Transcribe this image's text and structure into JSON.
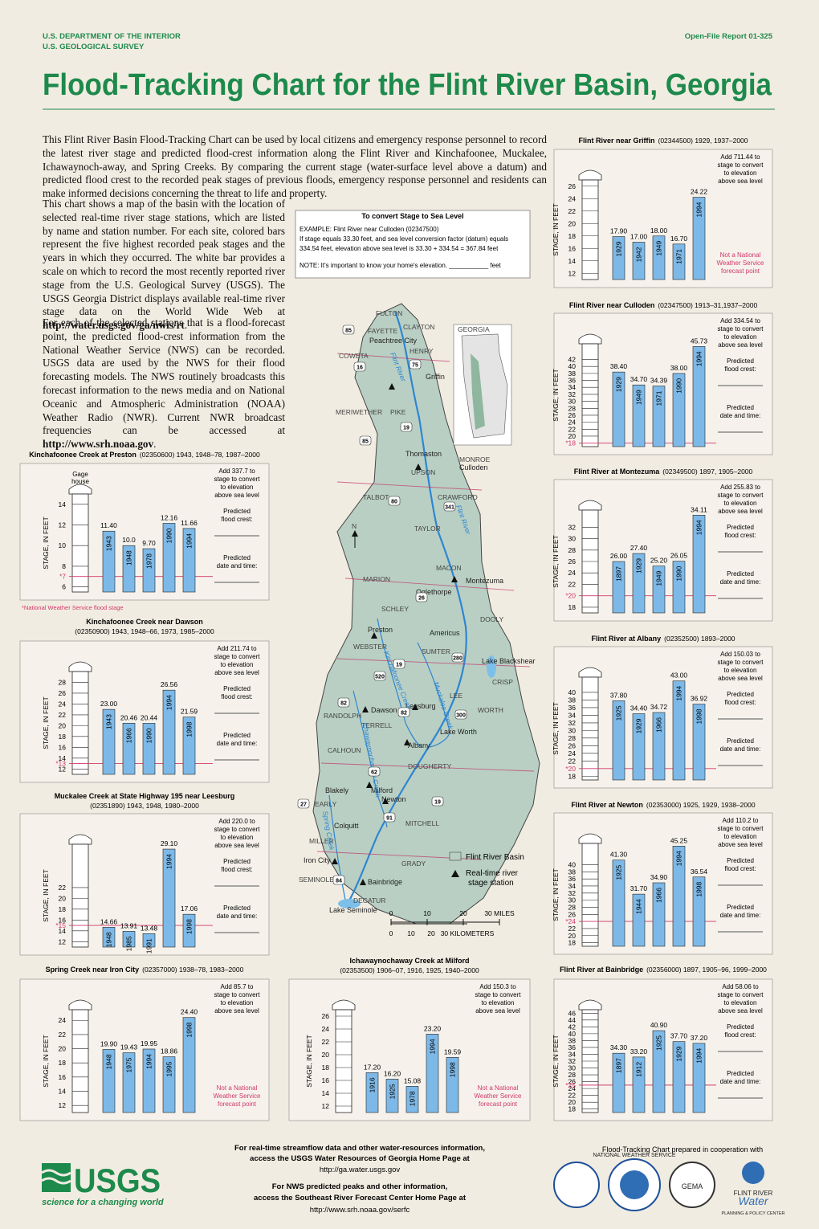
{
  "header": {
    "agency": "U.S. DEPARTMENT OF THE INTERIOR",
    "bureau": "U.S. GEOLOGICAL SURVEY",
    "report": "Open-File Report 01-325",
    "title": "Flood-Tracking Chart for the Flint River Basin, Georgia"
  },
  "intro": {
    "p1": "This Flint River Basin Flood-Tracking Chart can be used by local citizens and emergency response personnel to record the latest river stage and predicted flood-crest information along the Flint River and Kinchafoonee, Muckalee, Ichawaynoch-away, and Spring Creeks. By comparing the current stage (water-surface level above a datum) and predicted flood crest to the recorded peak stages of previous floods, emergency response personnel and residents can make informed decisions concerning the threat to life and property.",
    "p2": [
      "This chart shows a map of the basin with the location of selected real-time river stage stations, which are listed by name and station number. For each site, colored bars represent the five highest recorded peak stages and the years in which they occurred. The white bar provides a scale on which to record the most recently reported river stage from the U.S. Geological Survey (USGS). The USGS Georgia District displays available real-time river stage data on the World Wide Web at ",
      "http://water.usgs.gov/ga/nwis/rt",
      "."
    ],
    "p3": [
      "For each of the selected stations that is a flood-forecast point, the predicted flood-crest information from the National Weather Service (NWS) can be recorded. USGS data are used by the NWS for their flood forecasting models. The NWS routinely broadcasts this forecast information to the news media and on National Oceanic and Atmospheric Administration (NOAA) Weather Radio (NWR). Current NWR broadcast frequencies can be accessed at ",
      "http://www.srh.noaa.gov",
      "."
    ]
  },
  "conversion": {
    "title": "To convert Stage to Sea Level",
    "example": "EXAMPLE: Flint River near Culloden (02347500)",
    "line1": "If stage equals 33.30 feet, and sea level conversion factor (datum) equals",
    "line2": "334.54 feet, elevation above sea level is 33.30 + 334.54 = 367.84 feet",
    "note": "NOTE: It's important to know your home's elevation. ___________ feet"
  },
  "chart_data": [
    {
      "type": "bar",
      "title": "Flint River near Griffin",
      "subtitle": "(02344500) 1929, 1937–2000",
      "ylabel": "STAGE, IN FEET",
      "ylim": [
        11,
        27
      ],
      "yticks": [
        12,
        14,
        16,
        18,
        20,
        22,
        24,
        26
      ],
      "categories": [
        "1929",
        "1942",
        "1949",
        "1971",
        "1994"
      ],
      "values": [
        17.9,
        17,
        18,
        16.7,
        24.22
      ],
      "value_labels": [
        "17.90",
        "17.00",
        "18.00",
        "16.70",
        "24.22"
      ],
      "color": "#7db9e8",
      "datum_note": [
        "Add 711.44 to",
        "stage to convert",
        "to elevation",
        "above sea level"
      ],
      "note": [
        "Not a National",
        "Weather Service",
        "forecast point"
      ]
    },
    {
      "type": "bar",
      "title": "Flint River near Culloden",
      "subtitle": "(02347500) 1913–31,1937–2000",
      "ylabel": "STAGE, IN FEET",
      "ylim": [
        17,
        46.5
      ],
      "yticks": [
        20,
        22,
        24,
        26,
        28,
        30,
        32,
        34,
        36,
        38,
        40,
        42
      ],
      "categories": [
        "1929",
        "1949",
        "1971",
        "1990",
        "1994"
      ],
      "values": [
        38.4,
        34.7,
        34.39,
        38,
        45.73
      ],
      "value_labels": [
        "38.40",
        "34.70",
        "34.39",
        "38.00",
        "45.73"
      ],
      "color": "#7db9e8",
      "datum_note": [
        "Add 334.54 to",
        "stage to convert",
        "to elevation",
        "above sea level"
      ],
      "flood_stage": {
        "value": 18,
        "label": "*18"
      },
      "forecast": [
        [
          "Predicted",
          "flood crest:"
        ],
        [
          "Predicted",
          "date and time:"
        ]
      ]
    },
    {
      "type": "bar",
      "title": "Flint River at Montezuma",
      "subtitle": "(02349500) 1897, 1905–2000",
      "ylabel": "STAGE, IN FEET",
      "ylim": [
        17,
        35
      ],
      "yticks": [
        18,
        22,
        24,
        26,
        28,
        30,
        32
      ],
      "categories": [
        "1897",
        "1929",
        "1949",
        "1990",
        "1994"
      ],
      "values": [
        26,
        27.4,
        25.2,
        26.05,
        34.11
      ],
      "value_labels": [
        "26.00",
        "27.40",
        "25.20",
        "26.05",
        "34.11"
      ],
      "color": "#7db9e8",
      "datum_note": [
        "Add 255.83 to",
        "stage to convert",
        "to elevation",
        "above sea level"
      ],
      "flood_stage": {
        "value": 20,
        "label": "*20"
      },
      "forecast": [
        [
          "Predicted",
          "flood crest:"
        ],
        [
          "Predicted",
          "date and time:"
        ]
      ]
    },
    {
      "type": "bar",
      "title": "Flint River at Albany",
      "subtitle": "(02352500) 1893–2000",
      "ylabel": "STAGE, IN FEET",
      "ylim": [
        17,
        44
      ],
      "yticks": [
        18,
        22,
        24,
        26,
        28,
        30,
        32,
        34,
        36,
        38,
        40
      ],
      "categories": [
        "1925",
        "1929",
        "1966",
        "1994",
        "1998"
      ],
      "values": [
        37.8,
        34.4,
        34.72,
        43,
        36.92
      ],
      "value_labels": [
        "37.80",
        "34.40",
        "34.72",
        "43.00",
        "36.92"
      ],
      "color": "#7db9e8",
      "datum_note": [
        "Add 150.03 to",
        "stage to convert",
        "to elevation",
        "above sea level"
      ],
      "flood_stage": {
        "value": 20,
        "label": "*20"
      },
      "forecast": [
        [
          "Predicted",
          "flood crest:"
        ],
        [
          "Predicted",
          "date and time:"
        ]
      ]
    },
    {
      "type": "bar",
      "title": "Flint River at Newton",
      "subtitle": "(02353000) 1925, 1929, 1938–2000",
      "ylabel": "STAGE, IN FEET",
      "ylim": [
        17,
        46
      ],
      "yticks": [
        18,
        20,
        22,
        26,
        28,
        30,
        32,
        34,
        36,
        38,
        40
      ],
      "categories": [
        "1925",
        "1944",
        "1966",
        "1994",
        "1998"
      ],
      "values": [
        41.3,
        31.7,
        34.9,
        45.25,
        36.54
      ],
      "value_labels": [
        "41.30",
        "31.70",
        "34.90",
        "45.25",
        "36.54"
      ],
      "color": "#7db9e8",
      "datum_note": [
        "Add 110.2 to",
        "stage to convert",
        "to elevation",
        "above sea level"
      ],
      "flood_stage": {
        "value": 24,
        "label": "*24"
      },
      "forecast": [
        [
          "Predicted",
          "flood crest:"
        ],
        [
          "Predicted",
          "date and time:"
        ]
      ]
    },
    {
      "type": "bar",
      "title": "Flint River at Bainbridge",
      "subtitle": "(02356000) 1897, 1905–96, 1999–2000",
      "ylabel": "STAGE, IN FEET",
      "ylim": [
        17,
        47
      ],
      "yticks": [
        18,
        20,
        22,
        24,
        26,
        28,
        30,
        32,
        34,
        36,
        38,
        40,
        42,
        44,
        46
      ],
      "categories": [
        "1897",
        "1912",
        "1925",
        "1929",
        "1994"
      ],
      "values": [
        34.3,
        33.2,
        40.9,
        37.7,
        37.2
      ],
      "value_labels": [
        "34.30",
        "33.20",
        "40.90",
        "37.70",
        "37.20"
      ],
      "color": "#7db9e8",
      "datum_note": [
        "Add 58.06 to",
        "stage to convert",
        "to elevation",
        "above sea level"
      ],
      "flood_stage": {
        "value": 25,
        "label": "*25"
      },
      "forecast": [
        [
          "Predicted",
          "flood crest:"
        ],
        [
          "Predicted",
          "date and time:"
        ]
      ]
    },
    {
      "type": "bar",
      "title": "Kinchafoonee Creek at Preston",
      "subtitle": "(02350600) 1943, 1948–78, 1987–2000",
      "ylabel": "STAGE, IN FEET",
      "ylim": [
        5.5,
        15
      ],
      "yticks": [
        6,
        8,
        10,
        12,
        14
      ],
      "categories": [
        "1943",
        "1948",
        "1978",
        "1990",
        "1994"
      ],
      "values": [
        11.4,
        10,
        9.7,
        12.16,
        11.66
      ],
      "value_labels": [
        "11.40",
        "10.0",
        "9.70",
        "12.16",
        "11.66"
      ],
      "color": "#7db9e8",
      "gage_label": [
        "Gage",
        "house"
      ],
      "datum_note": [
        "Add 337.7 to",
        "stage to convert",
        "to elevation",
        "above sea level"
      ],
      "flood_stage": {
        "value": 7,
        "label": "*7"
      },
      "forecast": [
        [
          "Predicted",
          "flood crest:"
        ],
        [
          "Predicted",
          "date and time:"
        ]
      ],
      "footnote": "*National Weather Service flood stage"
    },
    {
      "type": "bar",
      "title": "Kinchafoonee Creek near Dawson",
      "subtitle": "(02350900) 1943, 1948–66, 1973, 1985–2000",
      "ylabel": "STAGE, IN FEET",
      "ylim": [
        11,
        30
      ],
      "yticks": [
        12,
        14,
        16,
        18,
        20,
        22,
        24,
        26,
        28
      ],
      "categories": [
        "1943",
        "1966",
        "1990",
        "1994",
        "1998"
      ],
      "values": [
        23,
        20.46,
        20.44,
        26.56,
        21.59
      ],
      "value_labels": [
        "23.00",
        "20.46",
        "20.44",
        "26.56",
        "21.59"
      ],
      "color": "#7db9e8",
      "datum_note": [
        "Add 211.74 to",
        "stage to convert",
        "to elevation",
        "above sea level"
      ],
      "flood_stage": {
        "value": 13,
        "label": "*13"
      },
      "forecast": [
        [
          "Predicted",
          "flood crest:"
        ],
        [
          "Predicted",
          "date and time:"
        ]
      ]
    },
    {
      "type": "bar",
      "title": "Muckalee Creek at State Highway 195 near Leesburg",
      "subtitle": "(02351890) 1943, 1948, 1980–2000",
      "ylabel": "STAGE, IN FEET",
      "ylim": [
        11,
        30
      ],
      "yticks": [
        12,
        14,
        16,
        18,
        20,
        22
      ],
      "categories": [
        "1948",
        "1985",
        "1991",
        "1994",
        "1998"
      ],
      "values": [
        14.66,
        13.91,
        13.48,
        29.1,
        17.06
      ],
      "value_labels": [
        "14.66",
        "13.91",
        "13.48",
        "29.10",
        "17.06"
      ],
      "color": "#7db9e8",
      "datum_note": [
        "Add 220.0 to",
        "stage to convert",
        "to elevation",
        "above sea level"
      ],
      "flood_stage": {
        "value": 15,
        "label": "*15"
      },
      "forecast": [
        [
          "Predicted",
          "flood crest:"
        ],
        [
          "Predicted",
          "date and time:"
        ]
      ]
    },
    {
      "type": "bar",
      "title": "Spring Creek near Iron City",
      "subtitle": "(02357000) 1938–78, 1983–2000",
      "ylabel": "STAGE, IN FEET",
      "ylim": [
        11,
        25.5
      ],
      "yticks": [
        12,
        14,
        16,
        18,
        20,
        22,
        24
      ],
      "categories": [
        "1948",
        "1975",
        "1994",
        "1995",
        "1998"
      ],
      "values": [
        19.9,
        19.43,
        19.95,
        18.86,
        24.4
      ],
      "value_labels": [
        "19.90",
        "19.43",
        "19.95",
        "18.86",
        "24.40"
      ],
      "color": "#7db9e8",
      "datum_note": [
        "Add 85.7 to",
        "stage to convert",
        "to elevation",
        "above sea level"
      ],
      "note": [
        "Not a National",
        "Weather Service",
        "forecast point"
      ]
    },
    {
      "type": "bar",
      "title": "Ichawaynochaway Creek at Milford",
      "subtitle": "(02353500) 1906–07, 1916, 1925, 1940–2000",
      "ylabel": "STAGE, IN FEET",
      "ylim": [
        11,
        27
      ],
      "yticks": [
        12,
        14,
        16,
        18,
        20,
        22,
        24,
        26
      ],
      "categories": [
        "1916",
        "1925",
        "1978",
        "1994",
        "1998"
      ],
      "values": [
        17.2,
        16.2,
        15.08,
        23.2,
        19.59
      ],
      "value_labels": [
        "17.20",
        "16.20",
        "15.08",
        "23.20",
        "19.59"
      ],
      "color": "#7db9e8",
      "datum_note": [
        "Add 150.3 to",
        "stage to convert",
        "to elevation",
        "above sea level"
      ],
      "note": [
        "Not a National",
        "Weather Service",
        "forecast point"
      ]
    }
  ],
  "map": {
    "labels": [
      "FULTON",
      "CLAYTON",
      "FAYETTE",
      "Peachtree City",
      "HENRY",
      "COWETA",
      "Griffin",
      "MERIWETHER",
      "PIKE",
      "Thomaston",
      "MONROE",
      "Culloden",
      "UPSON",
      "TALBOT",
      "CRAWFORD",
      "TAYLOR",
      "MACON",
      "MARION",
      "Montezuma",
      "Oglethorpe",
      "SCHLEY",
      "DOOLY",
      "Preston",
      "Americus",
      "WEBSTER",
      "SUMTER",
      "Lake Blackshear",
      "CRISP",
      "LEE",
      "Leesburg",
      "Dawson",
      "RANDOLPH",
      "WORTH",
      "TERRELL",
      "Lake Worth",
      "Albany",
      "CALHOUN",
      "DOUGHERTY",
      "Blakely",
      "Milford",
      "Newton",
      "EARLY",
      "MITCHELL",
      "Colquitt",
      "MILLER",
      "Iron City",
      "GRADY",
      "SEMINOLE",
      "Bainbridge",
      "DECATUR",
      "Lake Seminole",
      "GEORGIA",
      "N"
    ],
    "rivers": [
      "Flint River",
      "Kinchafoonee Creek",
      "Muckalee Creek",
      "Ichawaynochaway Creek",
      "Spring Creek",
      "Flint River"
    ],
    "highways": [
      "85",
      "75",
      "16",
      "19",
      "85",
      "80",
      "341",
      "26",
      "280",
      "520",
      "19",
      "82",
      "82",
      "300",
      "62",
      "27",
      "19",
      "91",
      "84"
    ],
    "legend": {
      "basin": "Flint River Basin",
      "station": [
        "Real-time river",
        "stage station"
      ]
    },
    "scale_miles": [
      "0",
      "10",
      "20",
      "30 MILES"
    ],
    "scale_km": [
      "0",
      "10",
      "20",
      "30 KILOMETERS"
    ]
  },
  "footer": {
    "logo": "USGS",
    "tagline": "science for a changing world",
    "lines": [
      "For real-time streamflow data and other water-resources information,",
      "access the USGS Water Resources of Georgia Home Page at",
      "http://ga.water.usgs.gov",
      "For NWS predicted peaks and other information,",
      "access the Southeast River Forecast Center Home Page at",
      "http://www.srh.noaa.gov/serfc"
    ],
    "cooperation": "Flood-Tracking Chart prepared in cooperation with",
    "partners": [
      "NATIONAL WEATHER SERVICE",
      "GEMA",
      "FLINT RIVER",
      "Water",
      "PLANNING & POLICY CENTER"
    ]
  }
}
